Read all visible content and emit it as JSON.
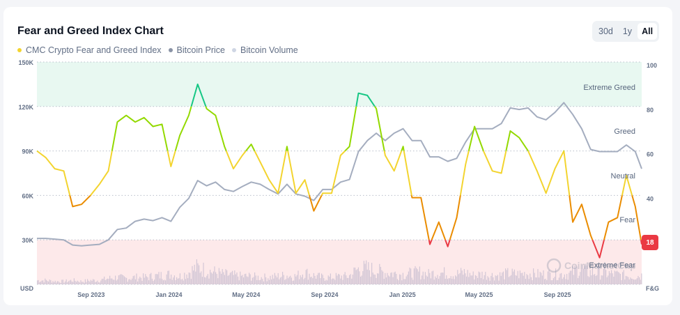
{
  "title": "Fear and Greed Index Chart",
  "legend": [
    {
      "label": "CMC Crypto Fear and Greed Index",
      "color": "#f3d42f"
    },
    {
      "label": "Bitcoin Price",
      "color": "#8a93a6"
    },
    {
      "label": "Bitcoin Volume",
      "color": "#cfd6e4"
    }
  ],
  "range_buttons": [
    {
      "label": "30d",
      "active": false
    },
    {
      "label": "1y",
      "active": false
    },
    {
      "label": "All",
      "active": true
    }
  ],
  "current_value": "18",
  "watermark": "CoinMarketCap",
  "chart_data": {
    "type": "line",
    "left_axis": {
      "label": "USD",
      "ticks": [
        "150K",
        "120K",
        "90K",
        "60K",
        "30K"
      ],
      "range": [
        0,
        150000
      ]
    },
    "right_axis": {
      "label": "F&G",
      "ticks": [
        "100",
        "80",
        "60",
        "40"
      ],
      "range": [
        0,
        100
      ]
    },
    "x_ticks": [
      "Sep 2023",
      "Jan 2024",
      "May 2024",
      "Sep 2024",
      "Jan 2025",
      "May 2025",
      "Sep 2025"
    ],
    "x_tick_dates": [
      "2023-09-01",
      "2024-01-01",
      "2024-05-01",
      "2024-09-01",
      "2025-01-01",
      "2025-05-01",
      "2025-09-01"
    ],
    "x_range": [
      "2023-06-08",
      "2026-01-11"
    ],
    "zones": [
      {
        "label": "Extreme Greed",
        "from": 80,
        "to": 100,
        "color": "#16c784"
      },
      {
        "label": "Greed",
        "from": 60,
        "to": 80,
        "color": "#93d900"
      },
      {
        "label": "Neutral",
        "from": 40,
        "to": 60,
        "color": "#f3d42f"
      },
      {
        "label": "Fear",
        "from": 20,
        "to": 40,
        "color": "#ea8c00"
      },
      {
        "label": "Extreme Fear",
        "from": 0,
        "to": 20,
        "color": "#ea3943"
      }
    ],
    "grid": true,
    "legend_position": "top-left",
    "dates": [
      "2023-06-08",
      "2023-06-22",
      "2023-07-06",
      "2023-07-20",
      "2023-08-03",
      "2023-08-17",
      "2023-08-31",
      "2023-09-14",
      "2023-09-28",
      "2023-10-12",
      "2023-10-26",
      "2023-11-09",
      "2023-11-23",
      "2023-12-07",
      "2023-12-21",
      "2024-01-04",
      "2024-01-18",
      "2024-02-01",
      "2024-02-15",
      "2024-02-29",
      "2024-03-14",
      "2024-03-28",
      "2024-04-11",
      "2024-04-25",
      "2024-05-09",
      "2024-05-23",
      "2024-06-06",
      "2024-06-20",
      "2024-07-04",
      "2024-07-18",
      "2024-08-01",
      "2024-08-15",
      "2024-08-29",
      "2024-09-12",
      "2024-09-26",
      "2024-10-10",
      "2024-10-24",
      "2024-11-07",
      "2024-11-21",
      "2024-12-05",
      "2024-12-19",
      "2025-01-02",
      "2025-01-16",
      "2025-01-30",
      "2025-02-13",
      "2025-02-27",
      "2025-03-13",
      "2025-03-27",
      "2025-04-10",
      "2025-04-24",
      "2025-05-08",
      "2025-05-22",
      "2025-06-05",
      "2025-06-19",
      "2025-07-03",
      "2025-07-17",
      "2025-07-31",
      "2025-08-14",
      "2025-08-28",
      "2025-09-11",
      "2025-09-25",
      "2025-10-09",
      "2025-10-23",
      "2025-11-06",
      "2025-11-20",
      "2025-12-04",
      "2025-12-18",
      "2026-01-01",
      "2026-01-11"
    ],
    "series": [
      {
        "name": "CMC Crypto Fear and Greed Index",
        "axis": "right",
        "values": [
          60,
          57,
          52,
          51,
          35,
          36,
          40,
          45,
          51,
          73,
          76,
          73,
          75,
          71,
          72,
          53,
          67,
          76,
          90,
          79,
          76,
          62,
          52,
          58,
          63,
          55,
          47,
          41,
          62,
          41,
          47,
          33,
          41,
          41,
          58,
          62,
          86,
          85,
          79,
          58,
          51,
          62,
          39,
          39,
          18,
          28,
          17,
          30,
          54,
          71,
          60,
          51,
          50,
          69,
          66,
          60,
          51,
          41,
          52,
          60,
          28,
          36,
          22,
          12,
          28,
          30,
          49,
          35,
          18
        ]
      },
      {
        "name": "Bitcoin Price",
        "axis": "left",
        "values": [
          31000,
          31000,
          30500,
          30000,
          26500,
          26000,
          26500,
          27000,
          30000,
          37000,
          38000,
          42500,
          44000,
          43000,
          45000,
          42500,
          52000,
          58000,
          70000,
          66500,
          69000,
          64000,
          62700,
          66000,
          69000,
          67500,
          64000,
          61000,
          67500,
          61000,
          59500,
          56600,
          64000,
          64000,
          69000,
          70700,
          89600,
          97000,
          102000,
          97000,
          102000,
          105000,
          97000,
          97000,
          86000,
          86000,
          83000,
          85000,
          96000,
          105000,
          105000,
          105000,
          108500,
          119000,
          118000,
          119000,
          113000,
          111000,
          116000,
          122600,
          114600,
          105000,
          91000,
          89600,
          89600,
          89600,
          94000,
          89600,
          78000
        ]
      },
      {
        "name": "Bitcoin Volume",
        "axis": "none",
        "relative": [
          0.2,
          0.2,
          0.15,
          0.15,
          0.2,
          0.15,
          0.2,
          0.2,
          0.3,
          0.35,
          0.3,
          0.35,
          0.35,
          0.4,
          0.45,
          0.5,
          0.4,
          0.6,
          0.85,
          0.7,
          0.6,
          0.5,
          0.45,
          0.4,
          0.4,
          0.35,
          0.35,
          0.4,
          0.45,
          0.4,
          0.6,
          0.45,
          0.35,
          0.35,
          0.4,
          0.4,
          0.75,
          0.8,
          0.7,
          0.6,
          0.55,
          0.5,
          0.55,
          0.6,
          0.5,
          0.6,
          0.55,
          0.5,
          0.6,
          0.45,
          0.5,
          0.45,
          0.45,
          0.55,
          0.5,
          0.55,
          0.5,
          0.5,
          0.5,
          0.5,
          0.55,
          0.8,
          0.6,
          0.6,
          0.55,
          0.5,
          0.45,
          0.4,
          0.45
        ]
      }
    ]
  }
}
